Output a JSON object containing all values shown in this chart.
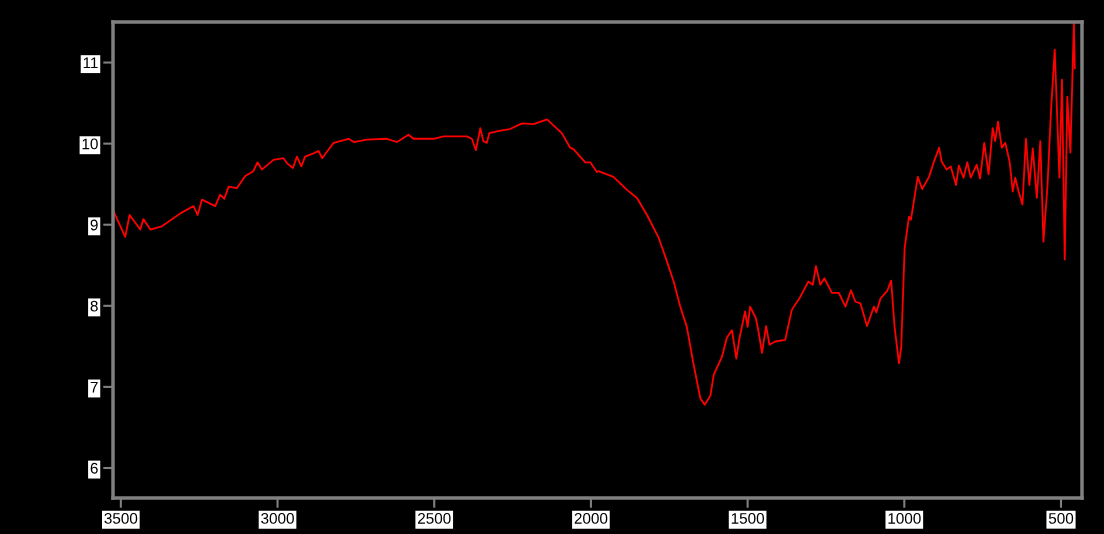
{
  "chart_data": {
    "type": "line",
    "x": [
      3525,
      3486,
      3472,
      3438,
      3428,
      3406,
      3369,
      3310,
      3268,
      3255,
      3241,
      3199,
      3183,
      3170,
      3156,
      3130,
      3103,
      3077,
      3064,
      3050,
      3013,
      2981,
      2970,
      2951,
      2938,
      2924,
      2912,
      2885,
      2869,
      2858,
      2821,
      2773,
      2757,
      2715,
      2651,
      2619,
      2582,
      2566,
      2502,
      2470,
      2396,
      2380,
      2367,
      2353,
      2343,
      2332,
      2324,
      2289,
      2258,
      2220,
      2183,
      2140,
      2093,
      2066,
      2055,
      2018,
      2002,
      1981,
      1976,
      1928,
      1885,
      1853,
      1821,
      1784,
      1763,
      1736,
      1715,
      1694,
      1673,
      1651,
      1637,
      1619,
      1608,
      1582,
      1566,
      1550,
      1536,
      1526,
      1508,
      1500,
      1492,
      1474,
      1465,
      1454,
      1441,
      1430,
      1412,
      1380,
      1359,
      1332,
      1306,
      1292,
      1282,
      1268,
      1255,
      1231,
      1209,
      1188,
      1170,
      1156,
      1140,
      1119,
      1097,
      1089,
      1076,
      1055,
      1042,
      1031,
      1017,
      1010,
      999,
      985,
      979,
      957,
      943,
      921,
      907,
      889,
      881,
      865,
      852,
      835,
      826,
      811,
      799,
      788,
      769,
      758,
      745,
      731,
      718,
      710,
      701,
      689,
      678,
      664,
      654,
      646,
      636,
      623,
      612,
      601,
      590,
      577,
      566,
      556,
      543,
      532,
      520,
      505,
      497,
      488,
      480,
      470,
      459,
      456
    ],
    "series": [
      {
        "color": "#ff0000",
        "values": [
          9.18,
          8.85,
          9.12,
          8.94,
          9.07,
          8.94,
          8.98,
          9.14,
          9.23,
          9.12,
          9.31,
          9.23,
          9.37,
          9.32,
          9.47,
          9.45,
          9.6,
          9.66,
          9.77,
          9.68,
          9.8,
          9.82,
          9.76,
          9.7,
          9.84,
          9.72,
          9.84,
          9.88,
          9.91,
          9.82,
          10.01,
          10.06,
          10.02,
          10.05,
          10.06,
          10.02,
          10.11,
          10.06,
          10.06,
          10.09,
          10.09,
          10.06,
          9.92,
          10.19,
          10.03,
          10.01,
          10.13,
          10.16,
          10.18,
          10.25,
          10.24,
          10.3,
          10.13,
          9.95,
          9.93,
          9.77,
          9.77,
          9.65,
          9.66,
          9.59,
          9.43,
          9.33,
          9.12,
          8.84,
          8.61,
          8.3,
          7.99,
          7.74,
          7.29,
          6.86,
          6.78,
          6.89,
          7.15,
          7.37,
          7.61,
          7.7,
          7.35,
          7.6,
          7.93,
          7.74,
          7.99,
          7.85,
          7.68,
          7.42,
          7.75,
          7.52,
          7.56,
          7.58,
          7.95,
          8.11,
          8.3,
          8.26,
          8.49,
          8.26,
          8.34,
          8.16,
          8.16,
          7.99,
          8.19,
          8.05,
          8.03,
          7.75,
          7.99,
          7.92,
          8.09,
          8.18,
          8.31,
          7.74,
          7.29,
          7.48,
          8.71,
          9.1,
          9.06,
          9.59,
          9.44,
          9.59,
          9.76,
          9.95,
          9.78,
          9.68,
          9.72,
          9.49,
          9.73,
          9.58,
          9.77,
          9.58,
          9.74,
          9.57,
          10.01,
          9.62,
          10.19,
          10.03,
          10.27,
          9.95,
          10.01,
          9.78,
          9.41,
          9.58,
          9.42,
          9.25,
          10.06,
          9.49,
          9.94,
          9.33,
          10.03,
          8.79,
          9.49,
          10.4,
          11.16,
          9.58,
          10.79,
          8.57,
          10.58,
          9.89,
          11.49,
          10.93
        ]
      }
    ],
    "xlim": [
      3525,
      433
    ],
    "ylim": [
      5.63,
      11.5
    ],
    "xticks": [
      3500,
      3000,
      2500,
      2000,
      1500,
      1000,
      500
    ],
    "yticks": [
      6,
      7,
      8,
      9,
      10,
      11
    ],
    "grid": false,
    "marker": "none",
    "line_style": "solid"
  }
}
